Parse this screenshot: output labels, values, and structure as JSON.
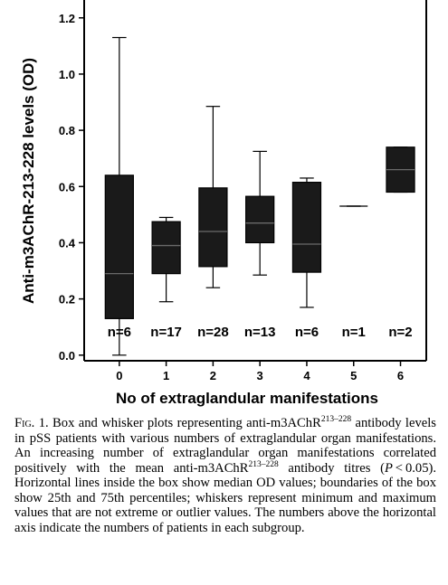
{
  "chart_data": {
    "type": "box",
    "xlabel": "No of extraglandular manifestations",
    "ylabel": "Anti-m3AChR-213-228 levels (OD)",
    "ylim": [
      -0.02,
      1.27
    ],
    "yticks": [
      0.0,
      0.2,
      0.4,
      0.6,
      0.8,
      1.0,
      1.2
    ],
    "ytick_labels": [
      "0.0",
      "0.2",
      "0.4",
      "0.6",
      "0.8",
      "1.0",
      "1.2"
    ],
    "grid": false,
    "categories": [
      "0",
      "1",
      "2",
      "3",
      "4",
      "5",
      "6"
    ],
    "boxes": [
      {
        "group": "0",
        "n_label": "n=6",
        "whisker_min": 0.0,
        "q1": 0.13,
        "median": 0.29,
        "q3": 0.64,
        "whisker_max": 1.13
      },
      {
        "group": "1",
        "n_label": "n=17",
        "whisker_min": 0.19,
        "q1": 0.29,
        "median": 0.39,
        "q3": 0.475,
        "whisker_max": 0.49
      },
      {
        "group": "2",
        "n_label": "n=28",
        "whisker_min": 0.24,
        "q1": 0.315,
        "median": 0.44,
        "q3": 0.595,
        "whisker_max": 0.885
      },
      {
        "group": "3",
        "n_label": "n=13",
        "whisker_min": 0.285,
        "q1": 0.4,
        "median": 0.47,
        "q3": 0.565,
        "whisker_max": 0.725
      },
      {
        "group": "4",
        "n_label": "n=6",
        "whisker_min": 0.17,
        "q1": 0.295,
        "median": 0.395,
        "q3": 0.615,
        "whisker_max": 0.63
      },
      {
        "group": "5",
        "n_label": "n=1",
        "whisker_min": 0.53,
        "q1": 0.53,
        "median": 0.53,
        "q3": 0.53,
        "whisker_max": 0.53
      },
      {
        "group": "6",
        "n_label": "n=2",
        "whisker_min": 0.58,
        "q1": 0.58,
        "median": 0.66,
        "q3": 0.74,
        "whisker_max": 0.74
      }
    ]
  },
  "caption": {
    "fig_label": "Fig. 1.",
    "t1": " Box and whisker plots representing anti-m3AChR",
    "s1": "213–228",
    "t2": " antibody levels in pSS patients with various numbers of extraglandular organ manifestations. An increasing number of extraglandular organ manifestations correlated positively with the mean anti-m3AChR",
    "s2": "213–228",
    "t3": " antibody titres (",
    "p_var": "P",
    "t4": " < 0.05). Horizontal lines inside the box show median OD values; boundaries of the box show 25th and 75th percentiles; whiskers represent minimum and maximum values that are not extreme or outlier values. The numbers above the horizontal axis indicate the numbers of patients in each subgroup."
  }
}
